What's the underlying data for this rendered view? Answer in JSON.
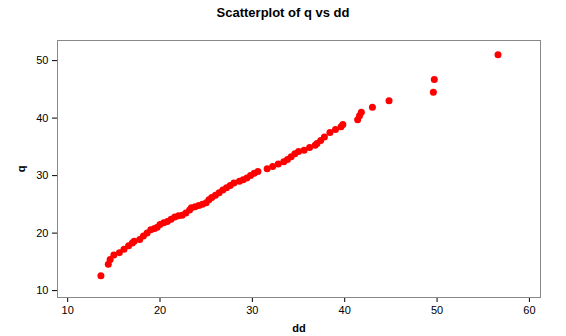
{
  "chart_data": {
    "type": "scatter",
    "title": "Scatterplot of q vs dd",
    "x_label": "dd",
    "y_label": "q",
    "x": [
      13.6,
      14.4,
      14.6,
      15.0,
      15.6,
      16.1,
      16.6,
      17.0,
      17.2,
      17.8,
      18.2,
      18.6,
      19.0,
      19.4,
      19.7,
      20.0,
      20.4,
      20.8,
      21.2,
      21.6,
      22.0,
      22.4,
      22.8,
      23.2,
      23.4,
      23.8,
      24.2,
      24.6,
      25.0,
      25.3,
      25.6,
      26.0,
      26.4,
      26.8,
      27.2,
      27.6,
      28.0,
      28.6,
      29.0,
      29.4,
      29.8,
      30.2,
      30.6,
      31.6,
      32.2,
      32.8,
      33.4,
      33.8,
      34.2,
      34.6,
      35.0,
      35.6,
      36.2,
      36.8,
      37.0,
      37.4,
      37.8,
      38.4,
      39.0,
      39.6,
      39.8,
      41.4,
      41.6,
      41.8,
      43.0,
      44.8,
      49.6,
      49.7,
      56.6
    ],
    "values": [
      12.6,
      14.6,
      15.4,
      16.2,
      16.6,
      17.2,
      17.8,
      18.3,
      18.6,
      18.9,
      19.5,
      20.0,
      20.6,
      20.8,
      21.0,
      21.5,
      21.8,
      22.0,
      22.4,
      22.8,
      23.0,
      23.1,
      23.5,
      24.0,
      24.4,
      24.6,
      24.8,
      25.0,
      25.3,
      25.8,
      26.2,
      26.6,
      27.0,
      27.5,
      27.9,
      28.3,
      28.7,
      29.0,
      29.3,
      29.6,
      30.0,
      30.4,
      30.7,
      31.2,
      31.6,
      32.0,
      32.4,
      32.8,
      33.3,
      33.8,
      34.2,
      34.4,
      34.9,
      35.3,
      35.6,
      36.1,
      36.7,
      37.5,
      38.0,
      38.5,
      38.9,
      39.7,
      40.4,
      41.0,
      41.9,
      43.0,
      44.5,
      46.7,
      51.0
    ],
    "color": "#ff0000",
    "marker": "circle",
    "xlim": [
      8.9,
      61.2
    ],
    "xticks": [
      10,
      20,
      30,
      40,
      50,
      60
    ],
    "ylim": [
      8.8,
      53.5
    ],
    "yticks": [
      10,
      20,
      30,
      40,
      50
    ],
    "grid": false
  }
}
